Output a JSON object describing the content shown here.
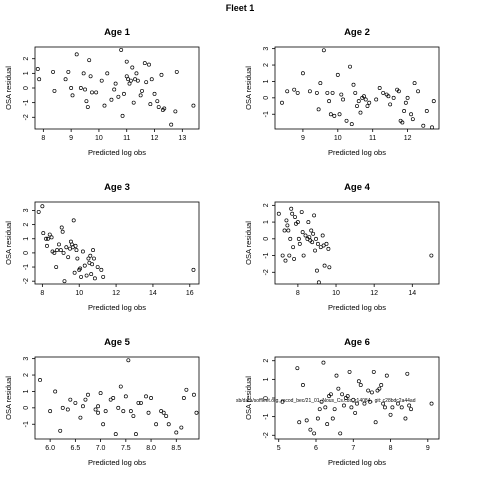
{
  "figure": {
    "title": "Fleet 1",
    "overlay_text": "sb/data/soffleet.org, rscod_bec/21_01_Nous_Cs.cdc_r14084 , git: c28bdc2a44ad"
  },
  "chart_data": [
    {
      "type": "scatter",
      "title": "Age 1",
      "xlabel": "Predicted log obs",
      "ylabel": "OSA residual",
      "xlim": [
        7.7,
        13.6
      ],
      "ylim": [
        -2.8,
        2.8
      ],
      "xticks": [
        8,
        9,
        10,
        11,
        12,
        13
      ],
      "yticks": [
        -2,
        -1,
        0,
        1,
        2
      ],
      "points": [
        [
          7.8,
          1.3
        ],
        [
          7.85,
          0.6
        ],
        [
          8.35,
          1.1
        ],
        [
          8.4,
          -0.2
        ],
        [
          8.8,
          0.6
        ],
        [
          8.9,
          1.1
        ],
        [
          9.0,
          0.0
        ],
        [
          9.05,
          -0.5
        ],
        [
          9.2,
          2.3
        ],
        [
          9.35,
          0.0
        ],
        [
          9.45,
          1.0
        ],
        [
          9.5,
          -0.1
        ],
        [
          9.55,
          -0.9
        ],
        [
          9.6,
          -1.3
        ],
        [
          9.65,
          1.9
        ],
        [
          9.7,
          0.8
        ],
        [
          9.75,
          -0.3
        ],
        [
          9.9,
          -0.3
        ],
        [
          10.1,
          0.5
        ],
        [
          10.2,
          -1.2
        ],
        [
          10.3,
          1.0
        ],
        [
          10.45,
          -0.8
        ],
        [
          10.55,
          -0.1
        ],
        [
          10.6,
          0.3
        ],
        [
          10.7,
          -0.6
        ],
        [
          10.8,
          2.6
        ],
        [
          10.85,
          -1.9
        ],
        [
          10.9,
          -0.4
        ],
        [
          11.0,
          1.8
        ],
        [
          11.0,
          0.8
        ],
        [
          11.05,
          0.6
        ],
        [
          11.1,
          0.3
        ],
        [
          11.15,
          0.5
        ],
        [
          11.2,
          1.4
        ],
        [
          11.25,
          -1.0
        ],
        [
          11.3,
          0.6
        ],
        [
          11.35,
          1.0
        ],
        [
          11.4,
          0.5
        ],
        [
          11.5,
          -0.5
        ],
        [
          11.55,
          -0.2
        ],
        [
          11.65,
          1.7
        ],
        [
          11.7,
          0.4
        ],
        [
          11.8,
          1.6
        ],
        [
          11.85,
          -1.1
        ],
        [
          11.9,
          0.6
        ],
        [
          12.0,
          -0.4
        ],
        [
          12.1,
          -0.9
        ],
        [
          12.15,
          -1.3
        ],
        [
          12.25,
          0.9
        ],
        [
          12.3,
          -1.5
        ],
        [
          12.35,
          -1.4
        ],
        [
          12.6,
          -2.5
        ],
        [
          12.75,
          -1.6
        ],
        [
          12.8,
          1.1
        ],
        [
          13.4,
          -1.2
        ]
      ]
    },
    {
      "type": "scatter",
      "title": "Age 2",
      "xlabel": "Predicted log obs",
      "ylabel": "OSA residual",
      "xlim": [
        8.2,
        12.9
      ],
      "ylim": [
        -1.9,
        3.1
      ],
      "xticks": [
        9,
        10,
        11,
        12
      ],
      "yticks": [
        -1,
        0,
        1,
        2,
        3
      ],
      "points": [
        [
          8.4,
          -0.3
        ],
        [
          8.55,
          0.4
        ],
        [
          8.75,
          0.5
        ],
        [
          8.85,
          0.3
        ],
        [
          9.0,
          1.5
        ],
        [
          9.2,
          0.4
        ],
        [
          9.4,
          0.3
        ],
        [
          9.45,
          -0.7
        ],
        [
          9.5,
          0.9
        ],
        [
          9.6,
          2.9
        ],
        [
          9.7,
          0.3
        ],
        [
          9.75,
          -0.2
        ],
        [
          9.8,
          -1.0
        ],
        [
          9.85,
          0.3
        ],
        [
          9.9,
          -1.1
        ],
        [
          10.0,
          1.4
        ],
        [
          10.05,
          -1.0
        ],
        [
          10.1,
          0.2
        ],
        [
          10.15,
          -0.1
        ],
        [
          10.25,
          -1.4
        ],
        [
          10.35,
          1.9
        ],
        [
          10.4,
          -1.6
        ],
        [
          10.45,
          0.8
        ],
        [
          10.5,
          0.3
        ],
        [
          10.55,
          -0.5
        ],
        [
          10.6,
          -0.2
        ],
        [
          10.65,
          -0.9
        ],
        [
          10.7,
          0.0
        ],
        [
          10.75,
          0.1
        ],
        [
          10.8,
          -0.1
        ],
        [
          10.85,
          -0.5
        ],
        [
          10.9,
          -0.3
        ],
        [
          11.1,
          -0.1
        ],
        [
          11.2,
          0.6
        ],
        [
          11.3,
          0.3
        ],
        [
          11.4,
          0.2
        ],
        [
          11.45,
          0.1
        ],
        [
          11.5,
          -0.4
        ],
        [
          11.6,
          0.0
        ],
        [
          11.7,
          0.5
        ],
        [
          11.75,
          0.4
        ],
        [
          11.8,
          -1.4
        ],
        [
          11.85,
          -1.5
        ],
        [
          11.9,
          -0.8
        ],
        [
          11.95,
          -0.3
        ],
        [
          12.0,
          0.0
        ],
        [
          12.1,
          -1.0
        ],
        [
          12.15,
          -1.3
        ],
        [
          12.2,
          0.9
        ],
        [
          12.3,
          0.4
        ],
        [
          12.45,
          -1.7
        ],
        [
          12.55,
          -0.8
        ],
        [
          12.7,
          -1.8
        ],
        [
          12.75,
          -0.2
        ]
      ]
    },
    {
      "type": "scatter",
      "title": "Age 3",
      "xlabel": "Predicted log obs",
      "ylabel": "OSA residual",
      "xlim": [
        7.6,
        16.5
      ],
      "ylim": [
        -2.2,
        3.6
      ],
      "xticks": [
        8,
        10,
        12,
        14,
        16
      ],
      "yticks": [
        -2,
        -1,
        0,
        1,
        2,
        3
      ],
      "points": [
        [
          7.8,
          2.9
        ],
        [
          8.0,
          3.3
        ],
        [
          8.05,
          1.4
        ],
        [
          8.2,
          1.0
        ],
        [
          8.25,
          0.5
        ],
        [
          8.3,
          1.0
        ],
        [
          8.4,
          1.3
        ],
        [
          8.5,
          1.1
        ],
        [
          8.55,
          0.1
        ],
        [
          8.65,
          0.0
        ],
        [
          8.75,
          -1.0
        ],
        [
          8.8,
          0.2
        ],
        [
          8.9,
          0.6
        ],
        [
          9.0,
          0.2
        ],
        [
          9.05,
          1.8
        ],
        [
          9.1,
          1.5
        ],
        [
          9.15,
          0.0
        ],
        [
          9.2,
          -2.0
        ],
        [
          9.3,
          0.4
        ],
        [
          9.4,
          -0.3
        ],
        [
          9.5,
          0.3
        ],
        [
          9.55,
          0.8
        ],
        [
          9.6,
          0.6
        ],
        [
          9.65,
          0.4
        ],
        [
          9.7,
          2.3
        ],
        [
          9.75,
          -1.4
        ],
        [
          9.8,
          0.5
        ],
        [
          9.85,
          0.2
        ],
        [
          9.9,
          -0.4
        ],
        [
          10.0,
          -1.2
        ],
        [
          10.05,
          -1.1
        ],
        [
          10.1,
          -1.7
        ],
        [
          10.2,
          0.1
        ],
        [
          10.3,
          -0.9
        ],
        [
          10.4,
          -1.6
        ],
        [
          10.5,
          -0.4
        ],
        [
          10.55,
          -0.7
        ],
        [
          10.6,
          -0.2
        ],
        [
          10.65,
          -1.5
        ],
        [
          10.7,
          -0.8
        ],
        [
          10.75,
          0.2
        ],
        [
          10.8,
          -0.4
        ],
        [
          10.85,
          -1.8
        ],
        [
          11.0,
          -1.0
        ],
        [
          11.2,
          -1.2
        ],
        [
          11.3,
          -1.7
        ],
        [
          16.2,
          -1.2
        ]
      ]
    },
    {
      "type": "scatter",
      "title": "Age 4",
      "xlabel": "Predicted log obs",
      "ylabel": "OSA residual",
      "xlim": [
        6.8,
        15.4
      ],
      "ylim": [
        -2.7,
        2.2
      ],
      "xticks": [
        8,
        10,
        12,
        14
      ],
      "yticks": [
        -2,
        -1,
        0,
        1,
        2
      ],
      "points": [
        [
          7.0,
          1.5
        ],
        [
          7.2,
          -1.0
        ],
        [
          7.3,
          0.5
        ],
        [
          7.35,
          -1.3
        ],
        [
          7.4,
          1.1
        ],
        [
          7.45,
          0.8
        ],
        [
          7.5,
          0.5
        ],
        [
          7.55,
          -1.0
        ],
        [
          7.6,
          0.0
        ],
        [
          7.65,
          1.8
        ],
        [
          7.7,
          1.5
        ],
        [
          7.75,
          -0.5
        ],
        [
          7.8,
          -1.2
        ],
        [
          7.85,
          1.3
        ],
        [
          7.9,
          0.9
        ],
        [
          8.0,
          1.0
        ],
        [
          8.05,
          0.0
        ],
        [
          8.1,
          -0.3
        ],
        [
          8.2,
          1.6
        ],
        [
          8.25,
          0.4
        ],
        [
          8.3,
          -1.0
        ],
        [
          8.4,
          0.2
        ],
        [
          8.5,
          0.0
        ],
        [
          8.55,
          1.0
        ],
        [
          8.6,
          0.1
        ],
        [
          8.65,
          -0.1
        ],
        [
          8.7,
          0.5
        ],
        [
          8.75,
          -0.2
        ],
        [
          8.8,
          0.3
        ],
        [
          8.85,
          1.4
        ],
        [
          8.9,
          -0.7
        ],
        [
          8.95,
          0.0
        ],
        [
          9.0,
          -1.9
        ],
        [
          9.05,
          -0.3
        ],
        [
          9.1,
          -2.6
        ],
        [
          9.2,
          -0.5
        ],
        [
          9.3,
          0.2
        ],
        [
          9.35,
          -0.4
        ],
        [
          9.4,
          -1.6
        ],
        [
          9.5,
          -0.3
        ],
        [
          9.6,
          -0.6
        ],
        [
          9.65,
          -1.7
        ],
        [
          15.0,
          -1.0
        ]
      ]
    },
    {
      "type": "scatter",
      "title": "Age 5",
      "xlabel": "Predicted log obs",
      "ylabel": "OSA residual",
      "xlim": [
        5.7,
        8.95
      ],
      "ylim": [
        -1.9,
        3.1
      ],
      "xticks": [
        6.0,
        6.5,
        7.0,
        7.5,
        8.0,
        8.5
      ],
      "yticks": [
        -1,
        0,
        1,
        2,
        3
      ],
      "points": [
        [
          5.8,
          1.7
        ],
        [
          6.0,
          -0.2
        ],
        [
          6.1,
          1.0
        ],
        [
          6.2,
          -1.4
        ],
        [
          6.25,
          0.0
        ],
        [
          6.35,
          -0.1
        ],
        [
          6.4,
          0.5
        ],
        [
          6.5,
          0.3
        ],
        [
          6.6,
          -0.6
        ],
        [
          6.65,
          0.1
        ],
        [
          6.7,
          0.5
        ],
        [
          6.75,
          0.8
        ],
        [
          6.9,
          -0.1
        ],
        [
          6.95,
          0.1
        ],
        [
          6.95,
          -0.3
        ],
        [
          7.0,
          0.9
        ],
        [
          7.05,
          -1.0
        ],
        [
          7.1,
          -0.2
        ],
        [
          7.2,
          0.5
        ],
        [
          7.25,
          0.6
        ],
        [
          7.3,
          -1.6
        ],
        [
          7.35,
          0.0
        ],
        [
          7.4,
          1.3
        ],
        [
          7.45,
          -0.2
        ],
        [
          7.5,
          0.7
        ],
        [
          7.55,
          2.9
        ],
        [
          7.6,
          -0.2
        ],
        [
          7.65,
          -0.5
        ],
        [
          7.7,
          -1.6
        ],
        [
          7.75,
          0.3
        ],
        [
          7.8,
          0.3
        ],
        [
          7.9,
          0.7
        ],
        [
          7.95,
          -0.3
        ],
        [
          8.0,
          0.6
        ],
        [
          8.1,
          -1.0
        ],
        [
          8.2,
          -0.2
        ],
        [
          8.25,
          -0.3
        ],
        [
          8.3,
          -0.5
        ],
        [
          8.35,
          -1.0
        ],
        [
          8.5,
          -1.5
        ],
        [
          8.6,
          -1.2
        ],
        [
          8.65,
          0.6
        ],
        [
          8.7,
          1.1
        ],
        [
          8.85,
          0.8
        ],
        [
          8.9,
          -0.3
        ]
      ]
    },
    {
      "type": "scatter",
      "title": "Age 6",
      "xlabel": "Predicted log obs",
      "ylabel": "OSA residual",
      "xlim": [
        4.9,
        9.3
      ],
      "ylim": [
        -2.2,
        2.2
      ],
      "xticks": [
        5,
        6,
        7,
        8,
        9
      ],
      "yticks": [
        -2,
        -1,
        0,
        1,
        2
      ],
      "points": [
        [
          5.1,
          -0.2
        ],
        [
          5.5,
          1.6
        ],
        [
          5.55,
          -1.3
        ],
        [
          5.65,
          0.7
        ],
        [
          5.75,
          -1.2
        ],
        [
          5.85,
          -1.7
        ],
        [
          5.95,
          -1.9
        ],
        [
          6.05,
          -1.1
        ],
        [
          6.1,
          -0.6
        ],
        [
          6.15,
          -0.2
        ],
        [
          6.2,
          1.9
        ],
        [
          6.25,
          -0.5
        ],
        [
          6.3,
          -1.4
        ],
        [
          6.35,
          0.1
        ],
        [
          6.4,
          0.2
        ],
        [
          6.45,
          -1.1
        ],
        [
          6.5,
          -0.6
        ],
        [
          6.55,
          1.2
        ],
        [
          6.6,
          0.5
        ],
        [
          6.65,
          -1.9
        ],
        [
          6.7,
          0.2
        ],
        [
          6.75,
          -0.4
        ],
        [
          6.8,
          0.0
        ],
        [
          6.85,
          0.1
        ],
        [
          6.9,
          1.4
        ],
        [
          6.95,
          -0.5
        ],
        [
          7.0,
          -0.1
        ],
        [
          7.05,
          -0.8
        ],
        [
          7.1,
          -0.3
        ],
        [
          7.15,
          0.9
        ],
        [
          7.2,
          0.7
        ],
        [
          7.3,
          -0.3
        ],
        [
          7.4,
          0.4
        ],
        [
          7.45,
          -0.2
        ],
        [
          7.5,
          0.3
        ],
        [
          7.55,
          1.4
        ],
        [
          7.6,
          -1.3
        ],
        [
          7.65,
          0.4
        ],
        [
          7.7,
          0.5
        ],
        [
          7.75,
          0.7
        ],
        [
          7.8,
          -0.3
        ],
        [
          7.85,
          -0.5
        ],
        [
          7.9,
          1.2
        ],
        [
          8.0,
          -0.9
        ],
        [
          8.05,
          -0.5
        ],
        [
          8.2,
          -0.3
        ],
        [
          8.3,
          -0.5
        ],
        [
          8.4,
          -1.1
        ],
        [
          8.45,
          1.3
        ],
        [
          8.5,
          -0.4
        ],
        [
          8.55,
          -0.6
        ],
        [
          9.1,
          -0.3
        ]
      ]
    }
  ]
}
